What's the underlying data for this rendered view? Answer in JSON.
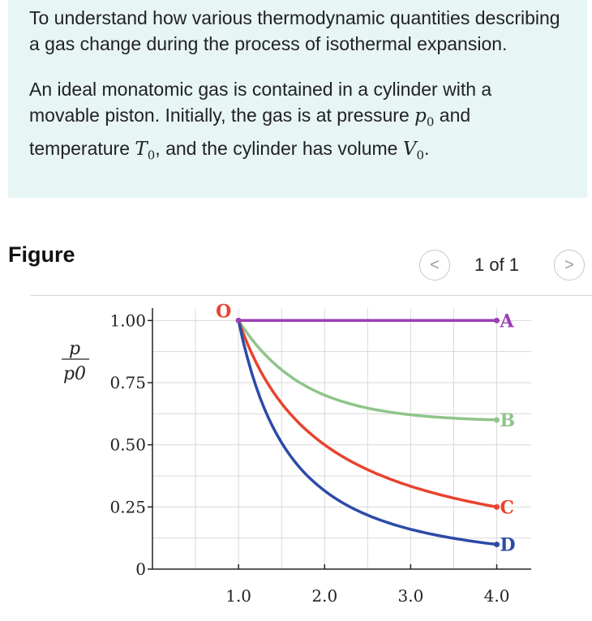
{
  "intro": {
    "para1": "To understand how various thermodynamic quantities describing a gas change during the process of isothermal expansion.",
    "para2_a": "An ideal monatomic gas is contained in a cylinder with a movable piston. Initially, the gas is at pressure ",
    "p0_sym": "p",
    "p0_sub": "0",
    "para2_b": " and temperature ",
    "t0_sym": "T",
    "t0_sub": "0",
    "para2_c": ", and the cylinder has volume ",
    "v0_sym": "V",
    "v0_sub": "0",
    "para2_d": "."
  },
  "figure": {
    "title": "Figure",
    "pager": {
      "prev": "<",
      "next": ">",
      "count": "1 of 1"
    }
  },
  "chart_data": {
    "type": "line",
    "ylabel_num": "p",
    "ylabel_den": "p0",
    "xlabel": "",
    "xlim": [
      0,
      4.4
    ],
    "ylim": [
      0,
      1.05
    ],
    "xticks": [
      "1.0",
      "2.0",
      "3.0",
      "4.0"
    ],
    "yticks": [
      "0",
      "0.25",
      "0.50",
      "0.75",
      "1.00"
    ],
    "start_label": "O",
    "start_point": [
      1.0,
      1.0
    ],
    "grid": true,
    "series": [
      {
        "name": "A",
        "color": "#9b3fb5",
        "end": [
          4.0,
          1.0
        ],
        "shape": "isobaric"
      },
      {
        "name": "B",
        "color": "#8fc48a",
        "end": [
          4.0,
          0.6
        ],
        "shape": "curve"
      },
      {
        "name": "C",
        "color": "#e8432e",
        "end": [
          4.0,
          0.25
        ],
        "shape": "isothermal"
      },
      {
        "name": "D",
        "color": "#2c4aa8",
        "end": [
          4.0,
          0.16
        ],
        "shape": "adiabatic"
      }
    ]
  }
}
